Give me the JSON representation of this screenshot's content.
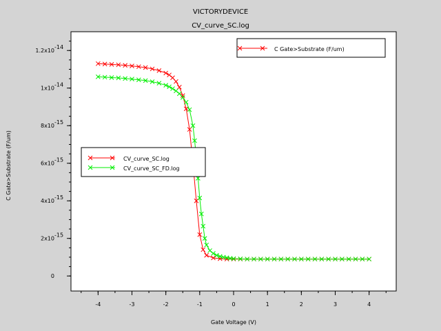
{
  "window": {
    "title": "VICTORYDEVICE",
    "subtitle": "CV_curve_SC.log"
  },
  "chart_data": {
    "type": "line",
    "title": "CV_curve_SC.log",
    "xlabel": "Gate Voltage (V)",
    "ylabel": "C Gate>Substrate (F/um)",
    "xlim": [
      -4.8,
      4.8
    ],
    "ylim": [
      -8e-16,
      1.3e-14
    ],
    "x_ticks": [
      -4,
      -3,
      -2,
      -1,
      0,
      1,
      2,
      3,
      4
    ],
    "y_ticks": [
      {
        "value": 0,
        "base": "0",
        "exp": ""
      },
      {
        "value": 2e-15,
        "base": "2x10",
        "exp": "-15"
      },
      {
        "value": 4e-15,
        "base": "4x10",
        "exp": "-15"
      },
      {
        "value": 6e-15,
        "base": "6x10",
        "exp": "-15"
      },
      {
        "value": 8e-15,
        "base": "8x10",
        "exp": "-15"
      },
      {
        "value": 1e-14,
        "base": "1x10",
        "exp": "-14"
      },
      {
        "value": 1.2e-14,
        "base": "1.2x10",
        "exp": "-14"
      }
    ],
    "series": [
      {
        "name": "CV_curve_SC.log",
        "color": "#ff0000",
        "x": [
          -4.0,
          -3.8,
          -3.6,
          -3.4,
          -3.2,
          -3.0,
          -2.8,
          -2.6,
          -2.4,
          -2.2,
          -2.0,
          -1.9,
          -1.8,
          -1.7,
          -1.6,
          -1.5,
          -1.4,
          -1.3,
          -1.2,
          -1.1,
          -1.0,
          -0.9,
          -0.8,
          -0.6,
          -0.4,
          -0.2,
          0.0,
          0.2,
          0.4,
          0.6,
          0.8,
          1.0,
          1.2,
          1.4,
          1.6,
          1.8,
          2.0,
          2.2,
          2.4,
          2.6,
          2.8,
          3.0,
          3.2,
          3.4,
          3.6,
          3.8,
          4.0
        ],
        "y": [
          1.13e-14,
          1.128e-14,
          1.126e-14,
          1.124e-14,
          1.121e-14,
          1.118e-14,
          1.114e-14,
          1.109e-14,
          1.102e-14,
          1.093e-14,
          1.08e-14,
          1.07e-14,
          1.055e-14,
          1.035e-14,
          1.005e-14,
          9.6e-15,
          8.9e-15,
          7.8e-15,
          6e-15,
          4e-15,
          2.2e-15,
          1.4e-15,
          1.1e-15,
          9.6e-16,
          9.2e-16,
          9e-16,
          9e-16,
          9e-16,
          9e-16,
          9e-16,
          9e-16,
          9e-16,
          9e-16,
          9e-16,
          9e-16,
          9e-16,
          9e-16,
          9e-16,
          9e-16,
          9e-16,
          9e-16,
          9e-16,
          9e-16,
          9e-16,
          9e-16,
          9e-16,
          9e-16
        ]
      },
      {
        "name": "CV_curve_SC_FD.log",
        "color": "#00ee00",
        "x": [
          -4.0,
          -3.8,
          -3.6,
          -3.4,
          -3.2,
          -3.0,
          -2.8,
          -2.6,
          -2.4,
          -2.2,
          -2.0,
          -1.9,
          -1.8,
          -1.7,
          -1.6,
          -1.5,
          -1.4,
          -1.3,
          -1.2,
          -1.15,
          -1.1,
          -1.05,
          -1.0,
          -0.95,
          -0.9,
          -0.85,
          -0.8,
          -0.7,
          -0.6,
          -0.5,
          -0.4,
          -0.3,
          -0.2,
          -0.1,
          0.0,
          0.2,
          0.4,
          0.6,
          0.8,
          1.0,
          1.2,
          1.4,
          1.6,
          1.8,
          2.0,
          2.2,
          2.4,
          2.6,
          2.8,
          3.0,
          3.2,
          3.4,
          3.6,
          3.8,
          4.0
        ],
        "y": [
          1.06e-14,
          1.058e-14,
          1.056e-14,
          1.054e-14,
          1.051e-14,
          1.048e-14,
          1.044e-14,
          1.04e-14,
          1.034e-14,
          1.026e-14,
          1.015e-14,
          1.007e-14,
          9.97e-15,
          9.85e-15,
          9.7e-15,
          9.5e-15,
          9.25e-15,
          8.85e-15,
          8e-15,
          7.2e-15,
          6.3e-15,
          5.2e-15,
          4.15e-15,
          3.3e-15,
          2.65e-15,
          2e-15,
          1.65e-15,
          1.35e-15,
          1.2e-15,
          1.1e-15,
          1.04e-15,
          1e-15,
          9.7e-16,
          9.4e-16,
          9.2e-16,
          9.1e-16,
          9e-16,
          9e-16,
          9e-16,
          9e-16,
          9e-16,
          9e-16,
          9e-16,
          9e-16,
          9e-16,
          9e-16,
          9e-16,
          9e-16,
          9e-16,
          9e-16,
          9e-16,
          9e-16,
          9e-16,
          9e-16,
          9e-16
        ]
      }
    ],
    "legend_top": {
      "position": "top-right",
      "entries": [
        "C Gate>Substrate (F/um)"
      ],
      "color": "#ff0000"
    },
    "legend_series": {
      "position": "middle-left",
      "entries": [
        "CV_curve_SC.log",
        "CV_curve_SC_FD.log"
      ]
    }
  }
}
